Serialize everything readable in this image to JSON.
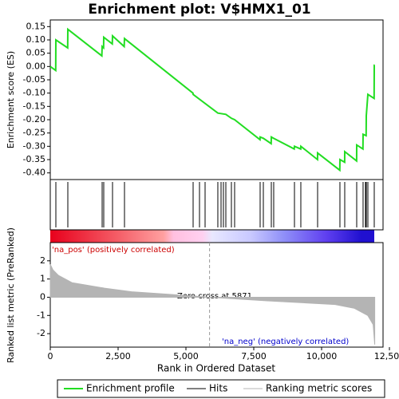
{
  "chart_data": {
    "type": "enrichment",
    "title": "Enrichment plot: V$HMX1_01",
    "xlabel": "Rank in Ordered Dataset",
    "xlim": [
      0,
      12265
    ],
    "xticks": [
      0,
      {
        "value": 2500,
        "label": "2,500"
      },
      {
        "value": 5000,
        "label": "5,000"
      },
      {
        "value": 7500,
        "label": "7,500"
      },
      {
        "value": 10000,
        "label": "10,000"
      },
      {
        "value": 12500,
        "label": "12,500"
      }
    ],
    "es": {
      "ylabel": "Enrichment score (ES)",
      "ylim": [
        -0.425,
        0.175
      ],
      "yticks": [
        0.15,
        {
          "value": 0.1,
          "label": "0.10"
        },
        0.05,
        {
          "value": 0,
          "label": "0.00"
        },
        -0.05,
        {
          "value": -0.1,
          "label": "-0.10"
        },
        -0.15,
        {
          "value": -0.2,
          "label": "-0.20"
        },
        -0.25,
        {
          "value": -0.3,
          "label": "-0.30"
        },
        -0.35,
        {
          "value": -0.4,
          "label": "-0.40"
        }
      ],
      "name": "Enrichment profile",
      "color": "#22dd22",
      "x": [
        0,
        200,
        206,
        640,
        647,
        1900,
        1912,
        1965,
        1971,
        2285,
        2294,
        2725,
        2735,
        5260,
        5265,
        6176,
        6470,
        6680,
        6794,
        7730,
        7735,
        7853,
        8140,
        8147,
        8230,
        8990,
        9000,
        9230,
        9235,
        9850,
        9853,
        10670,
        10676,
        10850,
        10853,
        11290,
        11294,
        11525,
        11529,
        11640,
        11647,
        11706,
        11935,
        11941,
        11960
      ],
      "values": [
        0,
        -0.015,
        0.1,
        0.07,
        0.14,
        0.04,
        0.075,
        0.07,
        0.11,
        0.085,
        0.115,
        0.075,
        0.105,
        -0.1,
        -0.105,
        -0.175,
        -0.18,
        -0.195,
        -0.2,
        -0.275,
        -0.265,
        -0.27,
        -0.29,
        -0.265,
        -0.27,
        -0.31,
        -0.3,
        -0.31,
        -0.3,
        -0.35,
        -0.325,
        -0.39,
        -0.35,
        -0.36,
        -0.32,
        -0.355,
        -0.295,
        -0.31,
        -0.255,
        -0.26,
        -0.185,
        -0.105,
        -0.12,
        0.005,
        0.005
      ]
    },
    "hits": {
      "name": "Hits",
      "color": "#000000",
      "x": [
        206,
        647,
        1912,
        1971,
        2294,
        2735,
        5265,
        5500,
        5706,
        6176,
        6294,
        6382,
        6471,
        6676,
        6794,
        7735,
        7853,
        8147,
        8235,
        9000,
        9235,
        9853,
        10676,
        10853,
        11294,
        11529,
        11618,
        11647,
        11706,
        11941
      ]
    },
    "metric": {
      "ylabel": "Ranked list metric (PreRanked)",
      "ylim": [
        -2.74,
        3.0
      ],
      "yticks": [
        2,
        1,
        0,
        -1,
        -2
      ],
      "name": "Ranking metric scores",
      "color": "#b4b4b4",
      "x": [
        0,
        100,
        300,
        800,
        2000,
        3000,
        5000,
        5871,
        8000,
        10500,
        11200,
        11700,
        11900,
        11960
      ],
      "values": [
        1.8,
        1.5,
        1.2,
        0.8,
        0.5,
        0.3,
        0.1,
        0,
        -0.2,
        -0.4,
        -0.6,
        -1.0,
        -1.5,
        -2.6
      ]
    },
    "pos_label": "'na_pos' (positively correlated)",
    "neg_label": "'na_neg' (negatively correlated)",
    "zero_cross": {
      "value": 5871,
      "label": "Zero cross at 5871"
    }
  }
}
